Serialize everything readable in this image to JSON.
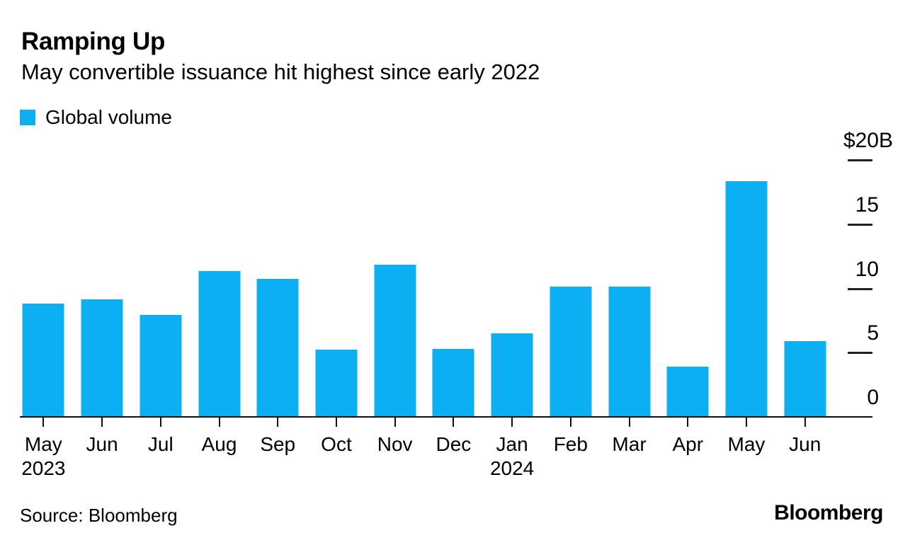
{
  "header": {
    "title": "Ramping Up",
    "subtitle": "May convertible issuance hit highest since early 2022"
  },
  "legend": {
    "label": "Global volume",
    "swatch_color": "#0caff1"
  },
  "footer": {
    "source": "Source: Bloomberg",
    "logo": "Bloomberg"
  },
  "chart_data": {
    "type": "bar",
    "title": "Ramping Up",
    "subtitle": "May convertible issuance hit highest since early 2022",
    "legend_entries": [
      "Global volume"
    ],
    "unit": "USD billions",
    "categories": [
      "May",
      "Jun",
      "Jul",
      "Aug",
      "Sep",
      "Oct",
      "Nov",
      "Dec",
      "Jan",
      "Feb",
      "Mar",
      "Apr",
      "May",
      "Jun"
    ],
    "category_years": [
      "2023",
      "",
      "",
      "",
      "",
      "",
      "",
      "",
      "2024",
      "",
      "",
      "",
      "",
      ""
    ],
    "values": [
      8.8,
      9.1,
      7.9,
      11.3,
      10.7,
      5.2,
      11.8,
      5.3,
      6.5,
      10.1,
      10.1,
      3.9,
      18.3,
      5.9
    ],
    "ylim": [
      0,
      20
    ],
    "y_ticks": [
      {
        "label": "$20",
        "suffix": "B",
        "value": 20
      },
      {
        "label": "15",
        "suffix": "",
        "value": 15
      },
      {
        "label": "10",
        "suffix": "",
        "value": 10
      },
      {
        "label": "5",
        "suffix": "",
        "value": 5
      },
      {
        "label": "0",
        "suffix": "",
        "value": 0
      }
    ],
    "y_axis_side": "right",
    "grid": false,
    "bar_color": "#0caff1",
    "axis_color": "#111111"
  }
}
